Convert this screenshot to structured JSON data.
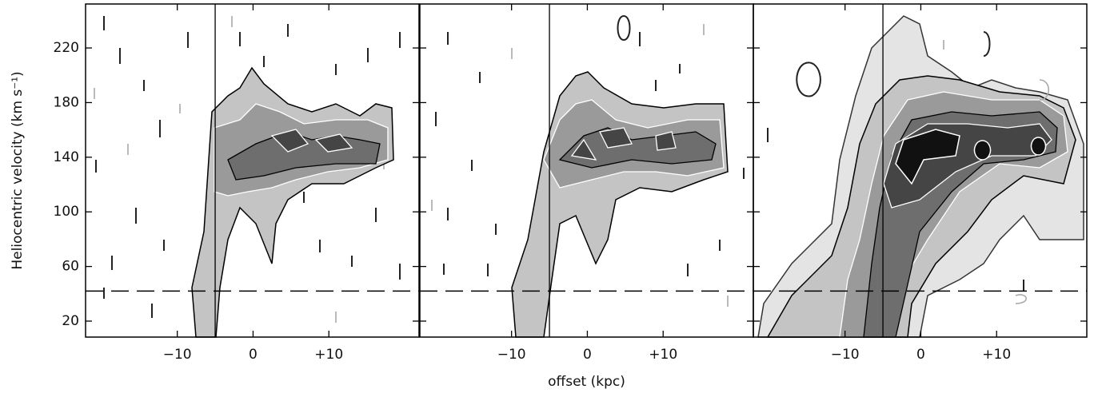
{
  "chart_data": [
    {
      "type": "contour",
      "y_label": "Heliocentric velocity (km s⁻¹)",
      "xlim": [
        -22.1,
        21.9
      ],
      "ylim": [
        8.3,
        252.2
      ],
      "xticks": [
        {
          "value": -10,
          "label": "−10"
        },
        0,
        {
          "value": 10,
          "label": "+10"
        }
      ],
      "yticks": [
        20,
        60,
        100,
        140,
        180,
        220
      ],
      "hline": 42,
      "vline": -5
    },
    {
      "type": "contour",
      "x_label": "offset (kpc)",
      "xlim": [
        -22.1,
        21.9
      ],
      "ylim": [
        8.3,
        252.2
      ],
      "xticks": [
        {
          "value": -10,
          "label": "−10"
        },
        0,
        {
          "value": 10,
          "label": "+10"
        }
      ],
      "hline": 42,
      "vline": -5
    },
    {
      "type": "contour",
      "xlim": [
        -22.1,
        21.9
      ],
      "ylim": [
        8.3,
        252.2
      ],
      "xticks": [
        {
          "value": -10,
          "label": "−10"
        },
        0,
        {
          "value": 10,
          "label": "+10"
        }
      ],
      "hline": 42,
      "vline": -5
    }
  ]
}
